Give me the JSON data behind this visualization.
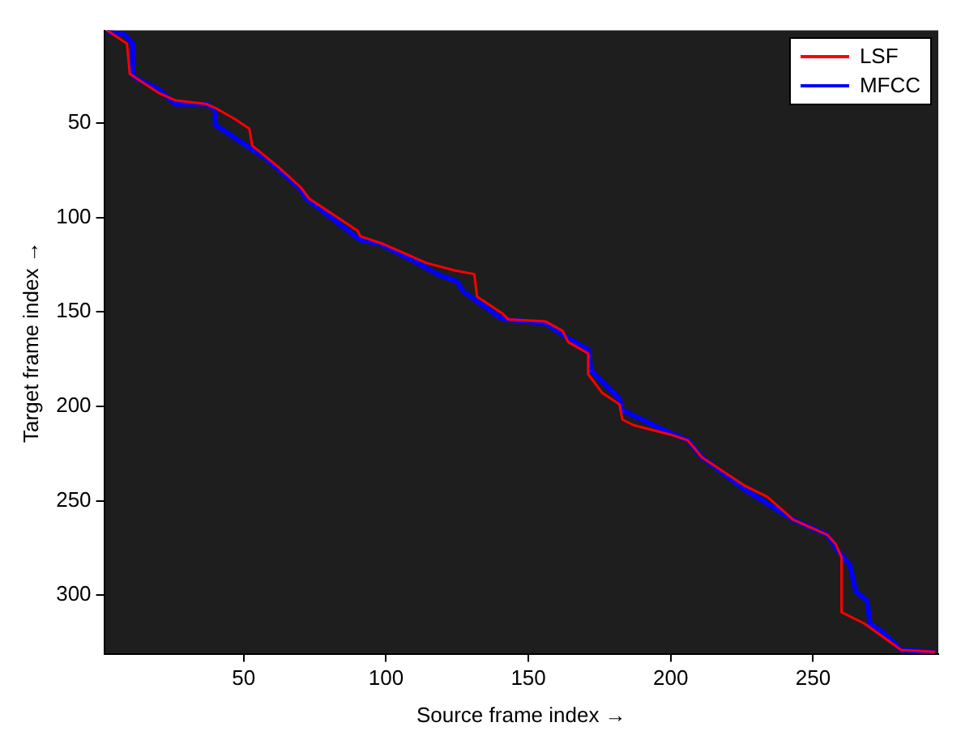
{
  "chart_data": {
    "type": "line",
    "xlabel": "Source frame index →",
    "ylabel": "Target frame index →",
    "xlim": [
      1,
      294
    ],
    "ylim": [
      331,
      1
    ],
    "xticks": [
      50,
      100,
      150,
      200,
      250
    ],
    "yticks": [
      50,
      100,
      150,
      200,
      250,
      300
    ],
    "grid": false,
    "legend": "top right",
    "marker": "none",
    "line_style": "solid",
    "series": [
      {
        "name": "LSF",
        "color": "#ff0000",
        "x": [
          2,
          5,
          9,
          10,
          13,
          20,
          26,
          37,
          40,
          47,
          52,
          53,
          62,
          70,
          73,
          90,
          91,
          99,
          114,
          124,
          131,
          132,
          141,
          143,
          156,
          162,
          164,
          171,
          171,
          176,
          182,
          183,
          187,
          200,
          206,
          211,
          226,
          234,
          243,
          255,
          258,
          260,
          260,
          268,
          281,
          293
        ],
        "values": [
          1,
          4,
          8,
          24,
          27,
          34,
          38,
          40,
          42,
          48,
          53,
          62,
          73,
          84,
          90,
          107,
          110,
          114,
          124,
          128,
          130,
          142,
          151,
          154,
          155,
          160,
          166,
          172,
          183,
          193,
          199,
          207,
          210,
          215,
          218,
          227,
          242,
          248,
          260,
          268,
          273,
          280,
          309,
          315,
          329,
          330
        ]
      },
      {
        "name": "MFCC",
        "color": "#0000ff",
        "x": [
          2,
          8,
          11,
          11,
          13,
          20,
          26,
          37,
          40,
          40,
          48,
          58,
          70,
          72,
          91,
          98,
          111,
          118,
          125,
          127,
          140,
          142,
          156,
          164,
          171,
          172,
          182,
          183,
          194,
          206,
          211,
          226,
          243,
          255,
          259,
          263,
          265,
          269,
          270,
          274,
          281,
          293
        ],
        "values": [
          2,
          3,
          8,
          25,
          27,
          32,
          40,
          40,
          43,
          51,
          59,
          69,
          85,
          90,
          112,
          114,
          124,
          130,
          134,
          139,
          153,
          154,
          156,
          164,
          170,
          181,
          196,
          202,
          210,
          218,
          227,
          244,
          260,
          268,
          277,
          284,
          298,
          303,
          315,
          319,
          329,
          330
        ]
      }
    ]
  }
}
